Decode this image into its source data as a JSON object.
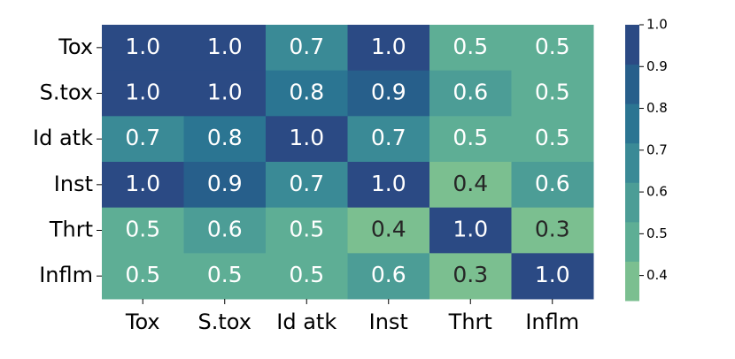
{
  "chart_data": {
    "type": "heatmap",
    "x_categories": [
      "Tox",
      "S.tox",
      "Id atk",
      "Inst",
      "Thrt",
      "Inflm"
    ],
    "y_categories": [
      "Tox",
      "S.tox",
      "Id atk",
      "Inst",
      "Thrt",
      "Inflm"
    ],
    "values": [
      [
        1.0,
        1.0,
        0.7,
        1.0,
        0.5,
        0.5
      ],
      [
        1.0,
        1.0,
        0.8,
        0.9,
        0.6,
        0.5
      ],
      [
        0.7,
        0.8,
        1.0,
        0.7,
        0.5,
        0.5
      ],
      [
        1.0,
        0.9,
        0.7,
        1.0,
        0.4,
        0.6
      ],
      [
        0.5,
        0.6,
        0.5,
        0.4,
        1.0,
        0.3
      ],
      [
        0.5,
        0.5,
        0.5,
        0.6,
        0.3,
        1.0
      ]
    ],
    "value_labels": [
      [
        "1.0",
        "1.0",
        "0.7",
        "1.0",
        "0.5",
        "0.5"
      ],
      [
        "1.0",
        "1.0",
        "0.8",
        "0.9",
        "0.6",
        "0.5"
      ],
      [
        "0.7",
        "0.8",
        "1.0",
        "0.7",
        "0.5",
        "0.5"
      ],
      [
        "1.0",
        "0.9",
        "0.7",
        "1.0",
        "0.4",
        "0.6"
      ],
      [
        "0.5",
        "0.6",
        "0.5",
        "0.4",
        "1.0",
        "0.3"
      ],
      [
        "0.5",
        "0.5",
        "0.5",
        "0.6",
        "0.3",
        "1.0"
      ]
    ],
    "clim": [
      0.34,
      1.0
    ],
    "cticks": [
      0.4,
      0.5,
      0.6,
      0.7,
      0.8,
      0.9,
      {
        "value": 1.0,
        "label": "1.0"
      }
    ],
    "colors": [
      "#7bbf90",
      "#5eae95",
      "#4c9d96",
      "#3a8a96",
      "#2b7592",
      "#275f8b",
      "#2b4a84"
    ]
  }
}
